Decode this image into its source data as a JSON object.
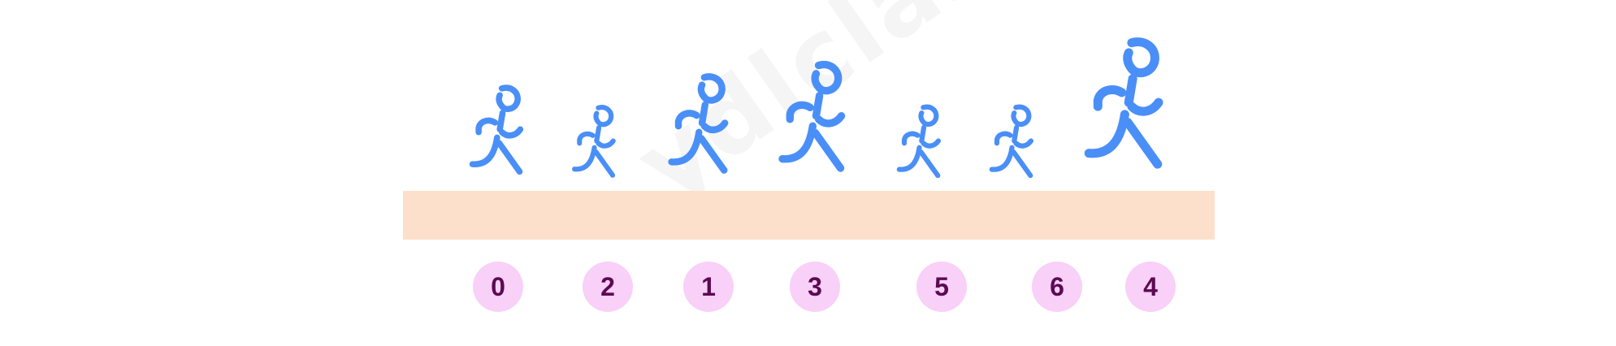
{
  "colors": {
    "runner": "#4a8ff7",
    "track": "#fde0cb",
    "badge": "#f8d0f8",
    "badge_text": "#5c0a52"
  },
  "icon": "running-person-icon",
  "watermark": "ydlclass.com",
  "runners": [
    {
      "label": "0",
      "scale": 1.0
    },
    {
      "label": "2",
      "scale": 0.82
    },
    {
      "label": "1",
      "scale": 1.15
    },
    {
      "label": "3",
      "scale": 1.33
    },
    {
      "label": "5",
      "scale": 0.86
    },
    {
      "label": "6",
      "scale": 0.86
    },
    {
      "label": "4",
      "scale": 1.55
    }
  ]
}
